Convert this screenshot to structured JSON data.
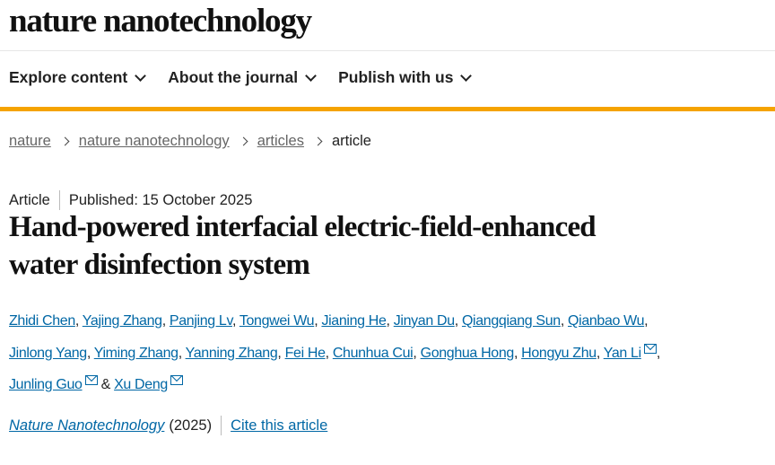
{
  "header": {
    "logo": "nature nanotechnology"
  },
  "nav": {
    "items": [
      {
        "label": "Explore content"
      },
      {
        "label": "About the journal"
      },
      {
        "label": "Publish with us"
      }
    ]
  },
  "colors": {
    "accent_bar": "#f5a300",
    "link": "#0067a5"
  },
  "breadcrumb": [
    "nature",
    "nature nanotechnology",
    "articles",
    "article"
  ],
  "article": {
    "type": "Article",
    "published": "Published: 15 October 2025",
    "title_line1": "Hand-powered interfacial electric-field-enhanced",
    "title_line2": "water disinfection system",
    "authors": [
      "Zhidi Chen",
      "Yajing Zhang",
      "Panjing Lv",
      "Tongwei Wu",
      "Jianing He",
      "Jinyan Du",
      "Qiangqiang Sun",
      "Qianbao Wu",
      "Jinlong Yang",
      "Yiming Zhang",
      "Yanning Zhang",
      "Fei He",
      "Chunhua Cui",
      "Gonghua Hong",
      "Hongyu Zhu",
      "Yan Li",
      "Junling Guo",
      "Xu Deng"
    ],
    "and": "&",
    "journal": "Nature Nanotechnology",
    "year": "(2025)",
    "cite": "Cite this article"
  }
}
